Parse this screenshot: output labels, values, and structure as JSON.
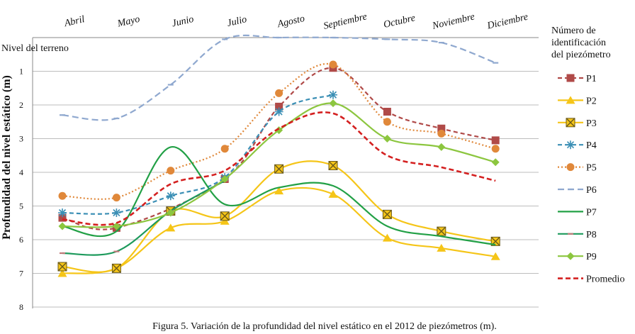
{
  "chart_data": {
    "type": "line",
    "title": "",
    "caption": "Figura 5. Variación de la profundidad del nivel estático en el 2012 de piezómetros (m).",
    "ylabel": "Profundidad  del nivel estático (m)",
    "ground_label": "Nivel del terreno",
    "legend_title": [
      "Número de",
      "identificación",
      "del piezómetro"
    ],
    "ylim": [
      0,
      8
    ],
    "y_ticks": [
      "1",
      "2",
      "3",
      "4",
      "5",
      "6",
      "7",
      "8"
    ],
    "categories": [
      "Abril",
      "Mayo",
      "Junio",
      "Julio",
      "Agosto",
      "Septiembre",
      "Octubre",
      "Noviembre",
      "Diciembre"
    ],
    "series": [
      {
        "name": "P1",
        "color": "#b04a48",
        "dash": "6,4",
        "width": 2.2,
        "marker": "square",
        "marker_color": "#b04a48",
        "values": [
          5.35,
          5.65,
          null,
          4.2,
          2.05,
          0.9,
          2.2,
          2.7,
          3.05
        ]
      },
      {
        "name": "P2",
        "color": "#f5c518",
        "dash": "",
        "width": 2.2,
        "marker": "triangle",
        "marker_color": "#f5c518",
        "values": [
          7.0,
          6.85,
          5.65,
          5.45,
          4.55,
          4.65,
          5.95,
          6.25,
          6.5
        ]
      },
      {
        "name": "P3",
        "color": "#f5c518",
        "dash": "",
        "width": 2.2,
        "marker": "xbox",
        "marker_color": "#f5c518",
        "values": [
          6.8,
          6.85,
          5.15,
          5.3,
          3.9,
          3.8,
          5.25,
          5.75,
          6.05
        ]
      },
      {
        "name": "P4",
        "color": "#3b8fb5",
        "dash": "6,4",
        "width": 2.2,
        "marker": "star",
        "marker_color": "#3b8fb5",
        "values": [
          5.2,
          5.2,
          4.7,
          4.15,
          2.2,
          1.7,
          null,
          null,
          null
        ]
      },
      {
        "name": "P5",
        "color": "#e0883a",
        "dash": "2,3",
        "width": 2.2,
        "marker": "circle",
        "marker_color": "#e0883a",
        "values": [
          4.7,
          4.75,
          3.95,
          3.3,
          1.65,
          0.8,
          2.5,
          2.85,
          3.3
        ]
      },
      {
        "name": "P6",
        "color": "#8fa8cf",
        "dash": "9,5",
        "width": 2.2,
        "marker": "dash",
        "marker_color": "#8fa8cf",
        "values": [
          2.3,
          2.4,
          1.4,
          0.05,
          0.0,
          0.0,
          0.05,
          0.15,
          0.75
        ]
      },
      {
        "name": "P7",
        "color": "#22a046",
        "dash": "",
        "width": 2.2,
        "marker": "none",
        "marker_color": "#22a046",
        "values": [
          5.6,
          5.75,
          3.25,
          4.95,
          4.45,
          4.4,
          5.6,
          5.9,
          6.15
        ]
      },
      {
        "name": "P8",
        "color": "#1d9a5c",
        "dash": "",
        "width": 2.2,
        "marker": "dash",
        "marker_color": "#c07a7a",
        "values": [
          6.4,
          6.35,
          5.15,
          4.25,
          null,
          null,
          null,
          null,
          null
        ]
      },
      {
        "name": "P9",
        "color": "#8cc63f",
        "dash": "",
        "width": 2.2,
        "marker": "diamond",
        "marker_color": "#8cc63f",
        "values": [
          5.6,
          5.6,
          5.2,
          4.2,
          2.75,
          1.95,
          3.0,
          3.25,
          3.7
        ]
      },
      {
        "name": "Promedio",
        "color": "#d42020",
        "dash": "7,4",
        "width": 2.6,
        "marker": "none",
        "marker_color": "#d42020",
        "values": [
          5.4,
          5.5,
          4.35,
          3.95,
          2.7,
          2.25,
          3.5,
          3.85,
          4.25
        ]
      }
    ]
  }
}
